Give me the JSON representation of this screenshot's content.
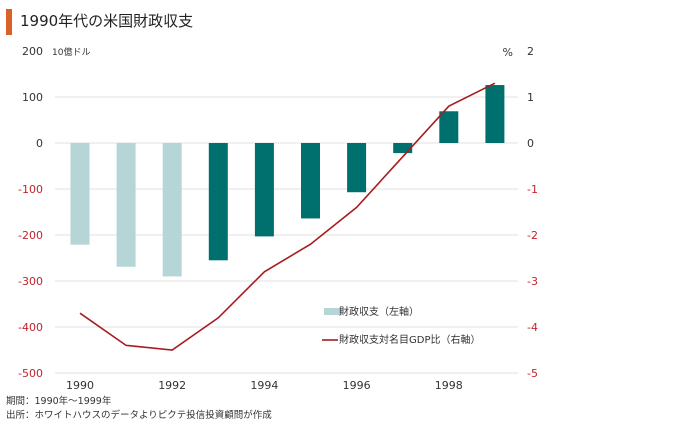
{
  "chart_data": {
    "type": "bar",
    "title": "1990年代の米国財政収支",
    "left_unit": "10億ドル",
    "right_unit": "%",
    "x": [
      1990,
      1991,
      1992,
      1993,
      1994,
      1995,
      1996,
      1997,
      1998,
      1999
    ],
    "x_tick_labels": [
      "1990",
      "1992",
      "1994",
      "1996",
      "1998"
    ],
    "left_ticks": [
      "200",
      "100",
      "0",
      "-100",
      "-200",
      "-300",
      "-400",
      "-500"
    ],
    "right_ticks": [
      "2",
      "1",
      "0",
      "-1",
      "-2",
      "-3",
      "-4",
      "-5"
    ],
    "ylim_left": [
      -500,
      200
    ],
    "ylim_right": [
      -5,
      2
    ],
    "series": [
      {
        "name": "財政収支（左軸）",
        "type": "bar",
        "axis": "left",
        "values": [
          -221,
          -269,
          -290,
          -255,
          -203,
          -164,
          -107,
          -22,
          69,
          126
        ]
      },
      {
        "name": "財政収支対名目GDP比（右軸）",
        "type": "line",
        "axis": "right",
        "values": [
          -3.7,
          -4.4,
          -4.5,
          -3.8,
          -2.8,
          -2.2,
          -1.4,
          -0.3,
          0.8,
          1.3
        ]
      }
    ],
    "notes": [
      "期間：1990年〜1999年",
      "出所：ホワイトハウスのデータよりピクテ投信投資顧問が作成"
    ]
  },
  "colors": {
    "bar_light": "#b5d5d6",
    "bar_dark": "#00706f",
    "line": "#a71c20",
    "accent": "#d9622b",
    "left_tick": "#333333",
    "right_tick": "#c0262b"
  }
}
